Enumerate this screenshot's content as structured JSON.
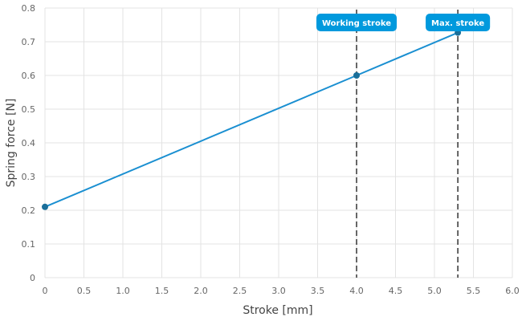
{
  "chart_data": {
    "type": "line",
    "xlabel": "Stroke [mm]",
    "ylabel": "Spring force [N]",
    "xlim": [
      0,
      6
    ],
    "ylim": [
      0,
      0.8
    ],
    "x_ticks": [
      0,
      0.5,
      1.0,
      1.5,
      2.0,
      2.5,
      3.0,
      3.5,
      4.0,
      4.5,
      5.0,
      5.5,
      6.0
    ],
    "x_tick_labels": [
      "0",
      "0.5",
      "1.0",
      "1.5",
      "2.0",
      "2.5",
      "3.0",
      "3.5",
      "4.0",
      "4.5",
      "5.0",
      "5.5",
      "6.0"
    ],
    "y_ticks": [
      0,
      0.1,
      0.2,
      0.3,
      0.4,
      0.5,
      0.6,
      0.7,
      0.8
    ],
    "y_tick_labels": [
      "0",
      "0.1",
      "0.2",
      "0.3",
      "0.4",
      "0.5",
      "0.6",
      "0.7",
      "0.8"
    ],
    "grid": true,
    "series": [
      {
        "color": "#1a8fd1",
        "points": [
          {
            "x": 0,
            "y": 0.21
          },
          {
            "x": 4.0,
            "y": 0.6
          },
          {
            "x": 5.3,
            "y": 0.727
          }
        ]
      }
    ],
    "markers": [
      {
        "label": "Working stroke",
        "x": 4.0
      },
      {
        "label": "Max. stroke",
        "x": 5.3
      }
    ],
    "colors": {
      "line": "#1a8fd1",
      "marker_dot": "#1a6f9a",
      "callout": "#0099dd",
      "grid": "#e3e3e3",
      "vline": "#333333"
    }
  }
}
